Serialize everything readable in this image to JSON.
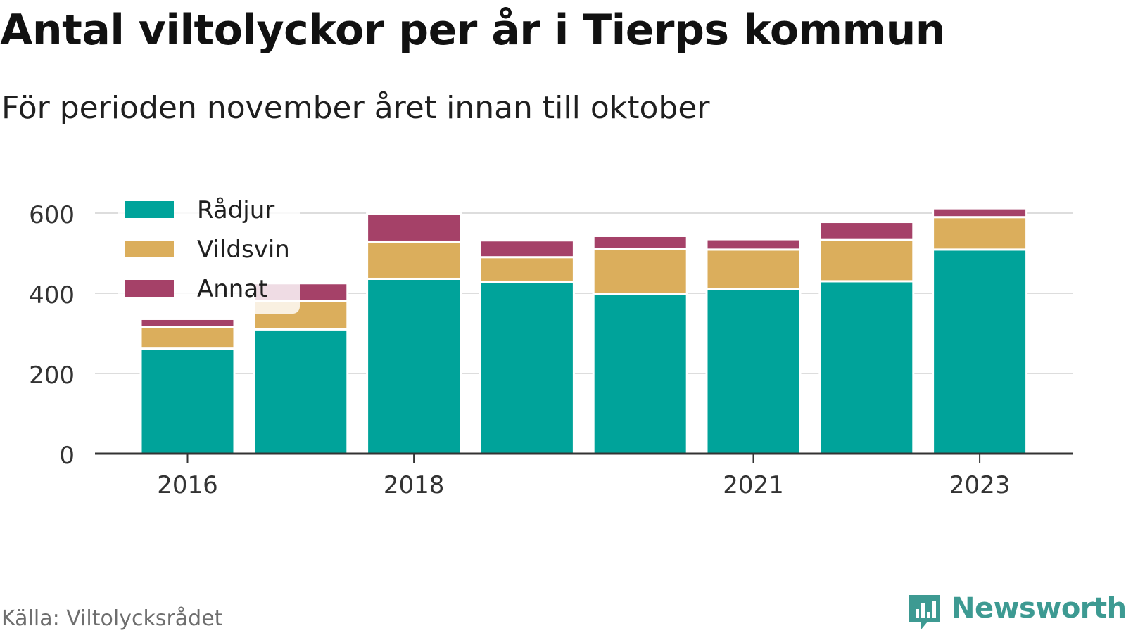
{
  "title": "Antal viltolyckor per år i Tierps kommun",
  "subtitle": "För perioden november året innan till oktober",
  "source": "Källa: Viltolycksrådet",
  "brand": "Newsworthy",
  "colors": {
    "Rådjur": "#00a39a",
    "Vildsvin": "#dbae5c",
    "Annat": "#a54168",
    "axis": "#333333",
    "grid": "#dddddd",
    "brand": "#3d9a92"
  },
  "chart_data": {
    "type": "bar",
    "stacked": true,
    "categories": [
      "2016",
      "2017",
      "2018",
      "2019",
      "2020",
      "2021",
      "2022",
      "2023"
    ],
    "x_tick_labels": [
      "2016",
      "2018",
      "2021",
      "2023"
    ],
    "series": [
      {
        "name": "Rådjur",
        "values": [
          262,
          310,
          436,
          429,
          399,
          411,
          430,
          509
        ]
      },
      {
        "name": "Vildsvin",
        "values": [
          54,
          70,
          93,
          61,
          111,
          98,
          103,
          81
        ]
      },
      {
        "name": "Annat",
        "values": [
          20,
          45,
          70,
          42,
          33,
          26,
          45,
          22
        ]
      }
    ],
    "ylim": [
      0,
      650
    ],
    "yticks": [
      0,
      200,
      400,
      600
    ],
    "grid": true,
    "legend_position": "top-left"
  }
}
